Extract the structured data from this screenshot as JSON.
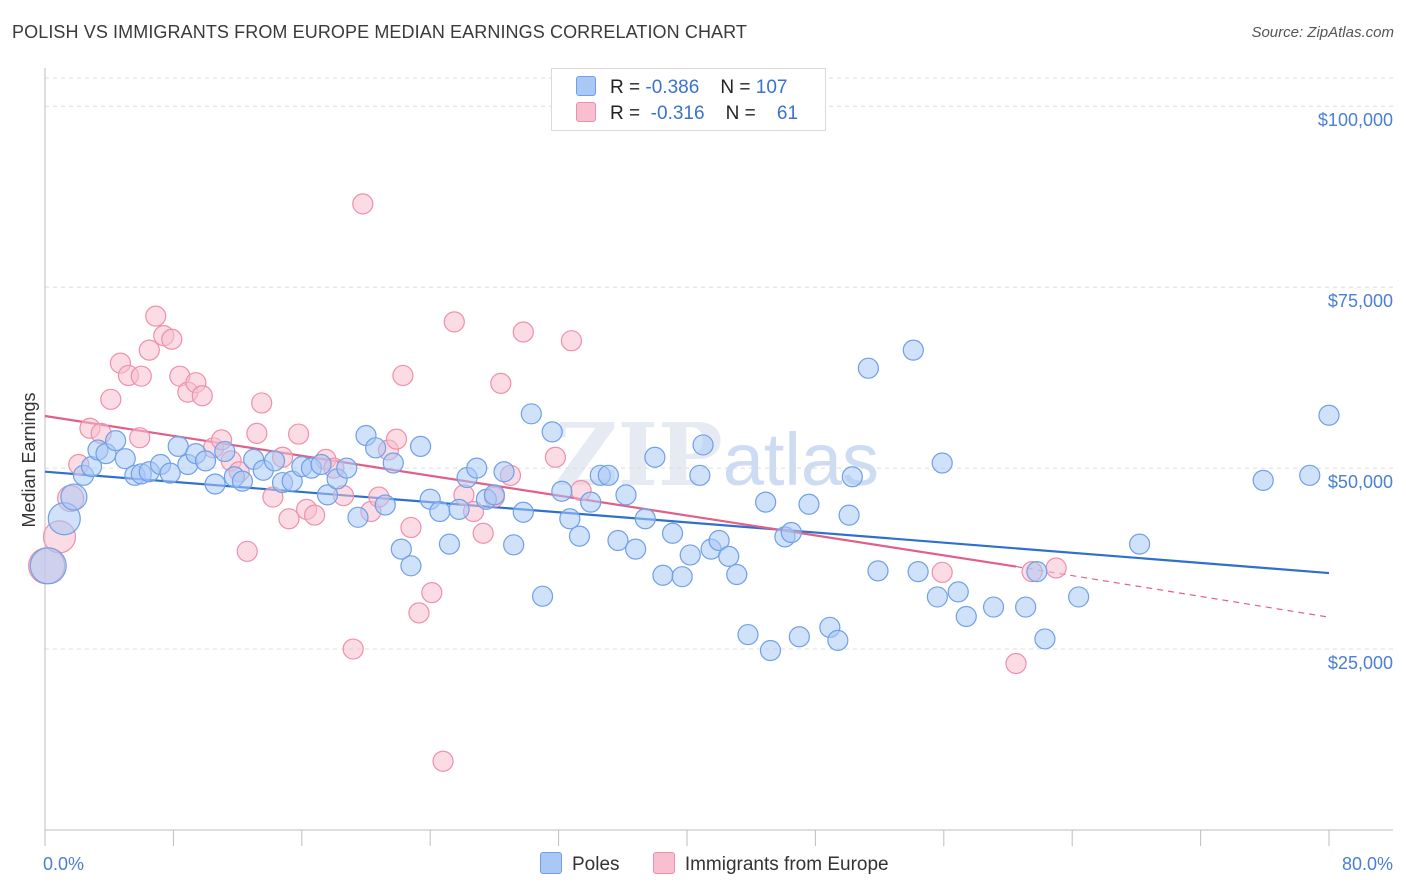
{
  "title": "POLISH VS IMMIGRANTS FROM EUROPE MEDIAN EARNINGS CORRELATION CHART",
  "source": "Source: ZipAtlas.com",
  "watermark": {
    "zip": "ZIP",
    "atlas": "atlas"
  },
  "legend": {
    "r_label": "R =",
    "n_label": "N =",
    "series": [
      {
        "name": "Poles",
        "r": "-0.386",
        "n": "107",
        "fill": "#aac8f5",
        "stroke": "#6fa0e6"
      },
      {
        "name": "Immigrants from Europe",
        "r": "-0.316",
        "n": "61",
        "fill": "#f7bfd0",
        "stroke": "#ee8fab"
      }
    ]
  },
  "chart_data": {
    "type": "scatter",
    "title": "POLISH VS IMMIGRANTS FROM EUROPE MEDIAN EARNINGS CORRELATION CHART",
    "xlabel": "",
    "ylabel": "Median Earnings",
    "xlim": [
      0,
      80
    ],
    "ylim": [
      0,
      105000
    ],
    "x_tick_labels": [
      "0.0%",
      "80.0%"
    ],
    "y_ticks": [
      {
        "value": 25000,
        "label": "$25,000"
      },
      {
        "value": 50000,
        "label": "$50,000"
      },
      {
        "value": 75000,
        "label": "$75,000"
      },
      {
        "value": 100000,
        "label": "$100,000"
      }
    ],
    "series": [
      {
        "name": "Poles",
        "color": "#6fa0e6",
        "trend": {
          "x0": 0,
          "y0": 49500,
          "x1": 80,
          "y1": 35500,
          "color": "#2f6fcf"
        },
        "points": [
          [
            0.2,
            36500
          ],
          [
            1.2,
            43000
          ],
          [
            1.8,
            46000
          ],
          [
            2.4,
            49000
          ],
          [
            2.9,
            50200
          ],
          [
            3.3,
            52500
          ],
          [
            3.8,
            52000
          ],
          [
            4.4,
            53800
          ],
          [
            5.0,
            51300
          ],
          [
            5.6,
            49000
          ],
          [
            6.0,
            49200
          ],
          [
            6.5,
            49500
          ],
          [
            7.2,
            50500
          ],
          [
            7.8,
            49300
          ],
          [
            8.3,
            53000
          ],
          [
            8.9,
            50500
          ],
          [
            9.4,
            52000
          ],
          [
            10.0,
            51000
          ],
          [
            10.6,
            47800
          ],
          [
            11.2,
            52300
          ],
          [
            11.8,
            48800
          ],
          [
            12.3,
            48200
          ],
          [
            13.0,
            51200
          ],
          [
            13.6,
            49700
          ],
          [
            14.3,
            51000
          ],
          [
            14.8,
            48000
          ],
          [
            15.4,
            48200
          ],
          [
            16.0,
            50200
          ],
          [
            16.6,
            50000
          ],
          [
            17.2,
            50500
          ],
          [
            17.6,
            46300
          ],
          [
            18.2,
            48500
          ],
          [
            18.8,
            50000
          ],
          [
            19.5,
            43200
          ],
          [
            20.0,
            54500
          ],
          [
            20.6,
            52800
          ],
          [
            21.2,
            44900
          ],
          [
            21.7,
            50700
          ],
          [
            22.2,
            38800
          ],
          [
            22.8,
            36500
          ],
          [
            23.4,
            53000
          ],
          [
            24.0,
            45700
          ],
          [
            24.6,
            44000
          ],
          [
            25.2,
            39500
          ],
          [
            25.8,
            44300
          ],
          [
            26.3,
            48700
          ],
          [
            26.9,
            50000
          ],
          [
            27.5,
            45700
          ],
          [
            28.0,
            46300
          ],
          [
            28.6,
            49500
          ],
          [
            29.2,
            39400
          ],
          [
            29.8,
            43900
          ],
          [
            30.3,
            57500
          ],
          [
            31.0,
            32300
          ],
          [
            31.6,
            55000
          ],
          [
            32.2,
            46800
          ],
          [
            32.7,
            43000
          ],
          [
            33.3,
            40600
          ],
          [
            34.0,
            45300
          ],
          [
            34.6,
            49000
          ],
          [
            35.1,
            49000
          ],
          [
            35.7,
            40000
          ],
          [
            36.2,
            46300
          ],
          [
            36.8,
            38800
          ],
          [
            37.4,
            43000
          ],
          [
            38.0,
            51500
          ],
          [
            38.5,
            35200
          ],
          [
            39.1,
            41000
          ],
          [
            39.7,
            35000
          ],
          [
            40.2,
            38000
          ],
          [
            40.8,
            49000
          ],
          [
            41.0,
            53200
          ],
          [
            41.5,
            38800
          ],
          [
            42.0,
            40000
          ],
          [
            42.6,
            37800
          ],
          [
            43.1,
            35300
          ],
          [
            43.8,
            27000
          ],
          [
            44.9,
            45300
          ],
          [
            45.2,
            24800
          ],
          [
            46.1,
            40500
          ],
          [
            46.5,
            41100
          ],
          [
            47.0,
            26700
          ],
          [
            47.6,
            45000
          ],
          [
            48.9,
            28000
          ],
          [
            49.4,
            26200
          ],
          [
            50.1,
            43500
          ],
          [
            50.3,
            48800
          ],
          [
            51.3,
            63800
          ],
          [
            51.9,
            35800
          ],
          [
            54.1,
            66300
          ],
          [
            54.4,
            35700
          ],
          [
            55.6,
            32200
          ],
          [
            55.9,
            50700
          ],
          [
            56.9,
            32900
          ],
          [
            57.4,
            29500
          ],
          [
            59.1,
            30800
          ],
          [
            61.1,
            30800
          ],
          [
            61.8,
            35700
          ],
          [
            62.3,
            26400
          ],
          [
            64.4,
            32200
          ],
          [
            68.2,
            39500
          ],
          [
            75.9,
            48300
          ],
          [
            78.8,
            49000
          ],
          [
            80.0,
            57300
          ]
        ],
        "sizes_note": "three leftmost points drawn larger"
      },
      {
        "name": "Immigrants from Europe",
        "color": "#ee8fab",
        "trend": {
          "x0": 0,
          "y0": 57200,
          "x1": 60.5,
          "y1": 36400,
          "x2_dashed": 80,
          "y2_dashed": 29400,
          "color": "#e0608a"
        },
        "points": [
          [
            0.1,
            36500
          ],
          [
            0.9,
            40500
          ],
          [
            1.6,
            45800
          ],
          [
            2.1,
            50500
          ],
          [
            2.8,
            55500
          ],
          [
            3.5,
            54800
          ],
          [
            4.1,
            59500
          ],
          [
            4.7,
            64500
          ],
          [
            5.2,
            62800
          ],
          [
            5.9,
            54200
          ],
          [
            6.0,
            62700
          ],
          [
            6.5,
            66300
          ],
          [
            6.9,
            71000
          ],
          [
            7.4,
            68300
          ],
          [
            7.9,
            67800
          ],
          [
            8.4,
            62700
          ],
          [
            8.9,
            60500
          ],
          [
            9.4,
            61800
          ],
          [
            9.8,
            60000
          ],
          [
            10.5,
            52800
          ],
          [
            11.0,
            53900
          ],
          [
            11.6,
            51000
          ],
          [
            12.1,
            49500
          ],
          [
            12.6,
            38500
          ],
          [
            13.2,
            54800
          ],
          [
            13.5,
            59000
          ],
          [
            14.2,
            46000
          ],
          [
            14.8,
            51500
          ],
          [
            15.2,
            43000
          ],
          [
            15.8,
            54700
          ],
          [
            16.3,
            44300
          ],
          [
            16.8,
            43500
          ],
          [
            17.5,
            51200
          ],
          [
            18.0,
            50000
          ],
          [
            18.6,
            46200
          ],
          [
            19.2,
            25000
          ],
          [
            19.8,
            86500
          ],
          [
            20.3,
            44000
          ],
          [
            20.8,
            46000
          ],
          [
            21.4,
            52500
          ],
          [
            21.9,
            54000
          ],
          [
            22.3,
            62800
          ],
          [
            22.8,
            41800
          ],
          [
            23.3,
            30000
          ],
          [
            24.1,
            32800
          ],
          [
            24.8,
            9500
          ],
          [
            25.5,
            70200
          ],
          [
            26.1,
            46300
          ],
          [
            26.7,
            44000
          ],
          [
            27.3,
            41000
          ],
          [
            28.0,
            46000
          ],
          [
            28.4,
            61700
          ],
          [
            29.0,
            49000
          ],
          [
            29.8,
            68800
          ],
          [
            31.8,
            51500
          ],
          [
            32.8,
            67600
          ],
          [
            33.4,
            46900
          ],
          [
            55.9,
            35600
          ],
          [
            60.5,
            23000
          ],
          [
            61.5,
            35700
          ],
          [
            63.0,
            36200
          ]
        ],
        "sizes_note": "three leftmost points drawn larger"
      }
    ]
  }
}
